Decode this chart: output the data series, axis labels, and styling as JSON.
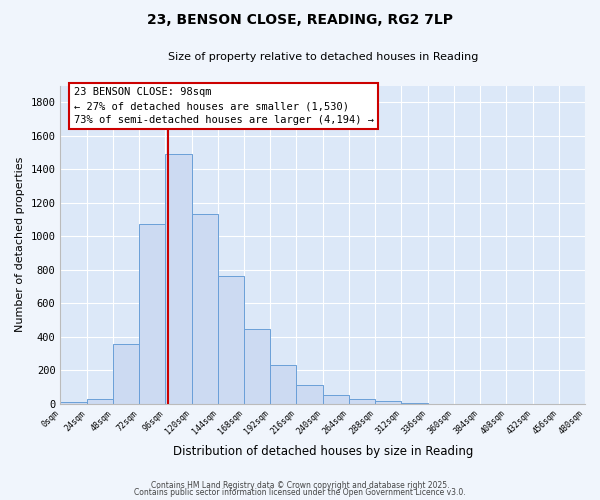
{
  "title": "23, BENSON CLOSE, READING, RG2 7LP",
  "subtitle": "Size of property relative to detached houses in Reading",
  "xlabel": "Distribution of detached houses by size in Reading",
  "ylabel": "Number of detached properties",
  "bar_color": "#ccdaf2",
  "bar_edge_color": "#6a9fd8",
  "background_color": "#dce8f8",
  "fig_background_color": "#f0f5fc",
  "annotation_box_facecolor": "#ffffff",
  "annotation_box_edgecolor": "#cc0000",
  "vline_x": 98,
  "vline_color": "#cc0000",
  "annotation_title": "23 BENSON CLOSE: 98sqm",
  "annotation_line1": "← 27% of detached houses are smaller (1,530)",
  "annotation_line2": "73% of semi-detached houses are larger (4,194) →",
  "bin_edges": [
    0,
    24,
    48,
    72,
    96,
    120,
    144,
    168,
    192,
    216,
    240,
    264,
    288,
    312,
    336,
    360,
    384,
    408,
    432,
    456,
    480
  ],
  "bar_heights": [
    12,
    28,
    355,
    1075,
    1490,
    1130,
    760,
    445,
    230,
    110,
    55,
    28,
    18,
    5,
    0,
    0,
    0,
    0,
    0,
    0
  ],
  "ylim": [
    0,
    1900
  ],
  "yticks": [
    0,
    200,
    400,
    600,
    800,
    1000,
    1200,
    1400,
    1600,
    1800
  ],
  "grid_color": "#ffffff",
  "footer_line1": "Contains HM Land Registry data © Crown copyright and database right 2025.",
  "footer_line2": "Contains public sector information licensed under the Open Government Licence v3.0."
}
